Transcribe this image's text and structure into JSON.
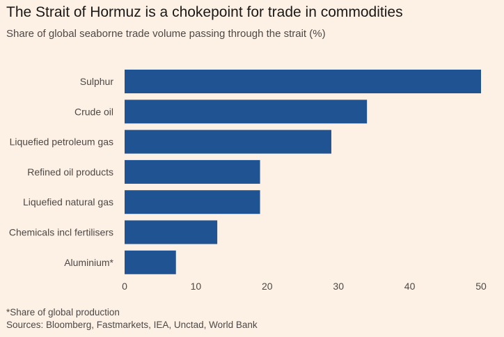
{
  "header": {
    "title": "The Strait of Hormuz is a chokepoint for trade in commodities",
    "subtitle": "Share of global seaborne trade volume passing through the strait (%)"
  },
  "footer": {
    "note": "*Share of global production",
    "source": "Sources: Bloomberg, Fastmarkets, IEA, Unctad, World Bank"
  },
  "chart_data": {
    "type": "bar",
    "orientation": "horizontal",
    "title": "The Strait of Hormuz is a chokepoint for trade in commodities",
    "subtitle": "Share of global seaborne trade volume passing through the strait (%)",
    "categories": [
      "Sulphur",
      "Crude oil",
      "Liquefied petroleum gas",
      "Refined oil products",
      "Liquefied natural gas",
      "Chemicals incl fertilisers",
      "Aluminium*"
    ],
    "values": [
      50,
      34,
      29,
      19,
      19,
      13,
      7.2
    ],
    "xlim": [
      0,
      50
    ],
    "xticks": [
      0,
      10,
      20,
      30,
      40,
      50
    ],
    "grid": false,
    "legend": "none",
    "bar_color": "#1f5392"
  }
}
